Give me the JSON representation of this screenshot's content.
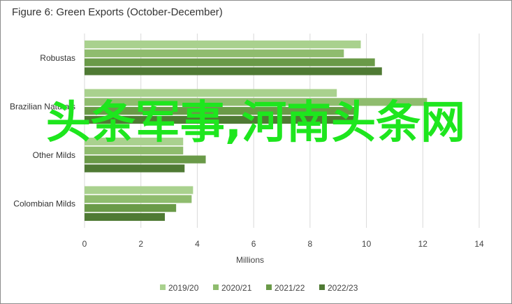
{
  "chart_data": {
    "type": "bar",
    "orientation": "horizontal",
    "title": "Figure 6: Green Exports (October-December)",
    "xlabel": "Millions",
    "ylabel": "",
    "xlim": [
      0,
      14
    ],
    "xticks": [
      0,
      2,
      4,
      6,
      8,
      10,
      12,
      14
    ],
    "grid": true,
    "legend_position": "bottom",
    "categories": [
      "Robustas",
      "Brazilian Naturals",
      "Other Milds",
      "Colombian Milds"
    ],
    "series": [
      {
        "name": "2019/20",
        "color": "#a9d18e",
        "values": [
          9.8,
          8.95,
          3.5,
          3.85
        ]
      },
      {
        "name": "2020/21",
        "color": "#8fbc6e",
        "values": [
          9.2,
          12.15,
          3.5,
          3.8
        ]
      },
      {
        "name": "2021/22",
        "color": "#6a9a48",
        "values": [
          10.3,
          9.7,
          4.3,
          3.25
        ]
      },
      {
        "name": "2022/23",
        "color": "#4f7a34",
        "values": [
          10.55,
          9.7,
          3.55,
          2.85
        ]
      }
    ]
  },
  "overlay_text": "头条军事,河南头条网"
}
